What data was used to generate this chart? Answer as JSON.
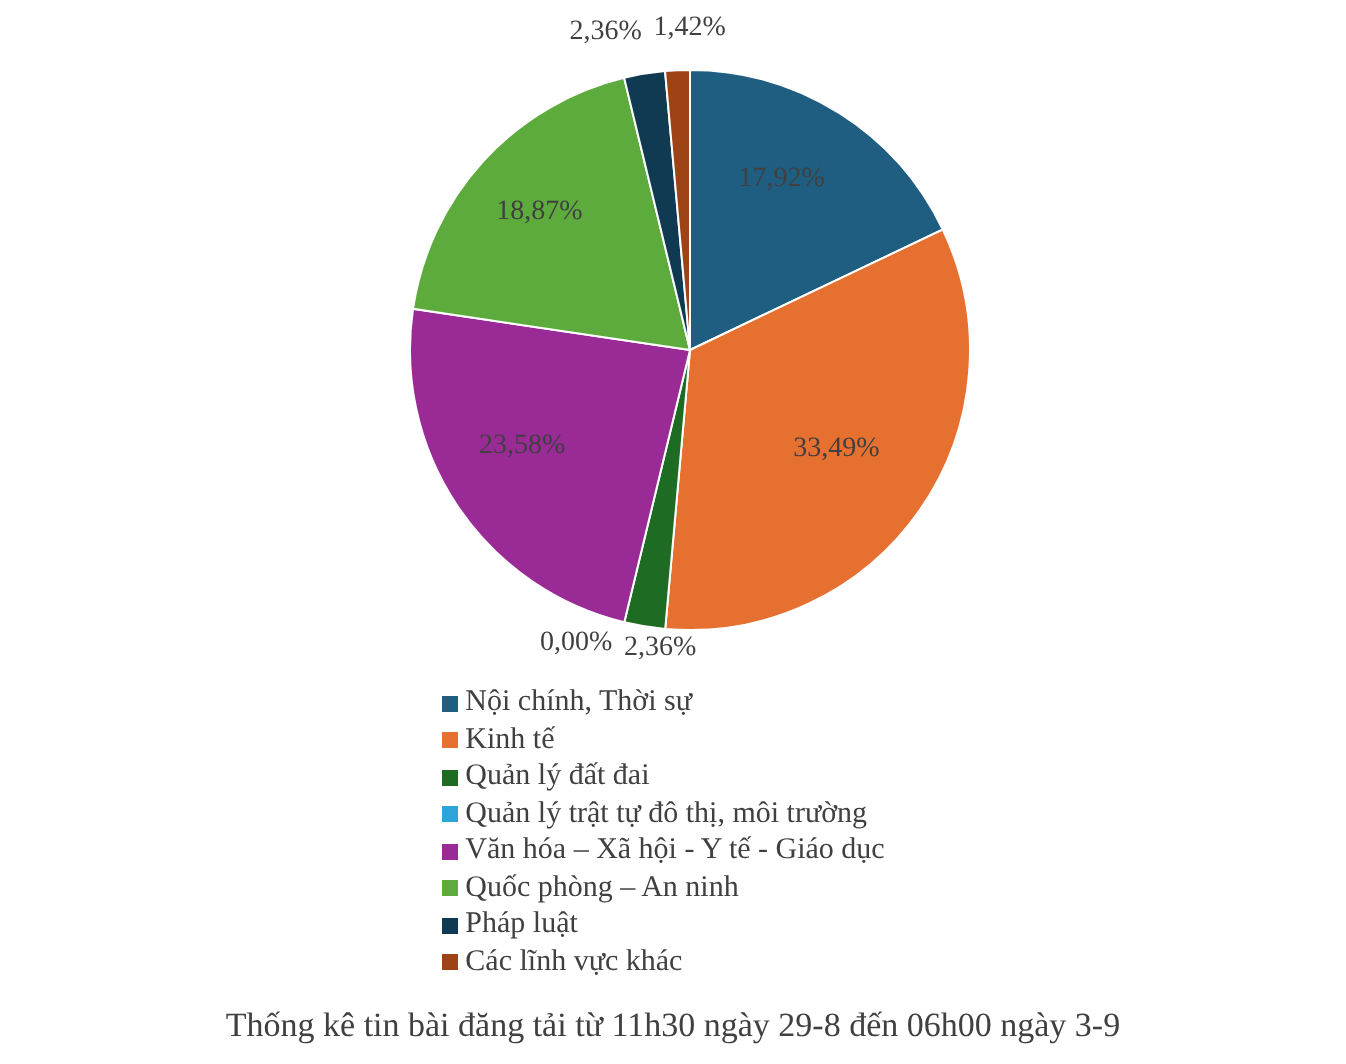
{
  "chart_data": {
    "type": "pie",
    "title": "Thống kê tin bài đăng tải từ 11h30 ngày 29-8 đến 06h00 ngày 3-9",
    "categories": [
      "Nội chính, Thời sự",
      "Kinh tế",
      "Quản lý đất đai",
      "Quản lý trật tự đô thị, môi trường",
      "Văn hóa – Xã hội - Y tế - Giáo dục",
      "Quốc phòng – An ninh",
      "Pháp luật",
      "Các lĩnh vực khác"
    ],
    "values": [
      17.92,
      33.49,
      2.36,
      0,
      23.58,
      18.87,
      2.36,
      1.42
    ],
    "colors": [
      "#1f5e80",
      "#e5702f",
      "#1e6b24",
      "#2ea4d8",
      "#9a2a96",
      "#5cab3c",
      "#0f3a52",
      "#9e4316"
    ],
    "value_labels": [
      "17,92%",
      "33,49%",
      "2,36%",
      "0,00%",
      "23,58%",
      "18,87%",
      "2,36%",
      "1,42%"
    ],
    "legend": "bottom"
  }
}
